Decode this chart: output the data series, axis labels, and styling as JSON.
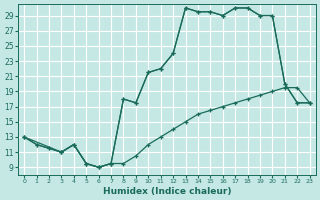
{
  "xlabel": "Humidex (Indice chaleur)",
  "bg_color": "#c5e8e5",
  "grid_color": "#d0e8e0",
  "line_color": "#1a6b5a",
  "xlim": [
    -0.5,
    23.5
  ],
  "ylim": [
    8.0,
    30.5
  ],
  "xticks": [
    0,
    1,
    2,
    3,
    4,
    5,
    6,
    7,
    8,
    9,
    10,
    11,
    12,
    13,
    14,
    15,
    16,
    17,
    18,
    19,
    20,
    21,
    22,
    23
  ],
  "yticks": [
    9,
    11,
    13,
    15,
    17,
    19,
    21,
    23,
    25,
    27,
    29
  ],
  "curve1_x": [
    0,
    1,
    2,
    3,
    4,
    5,
    6,
    7,
    8,
    9,
    10,
    11,
    12,
    13,
    14,
    15,
    16,
    17,
    18,
    19,
    20,
    21,
    22,
    23
  ],
  "curve1_y": [
    13,
    12,
    11.5,
    11,
    12,
    9.5,
    9,
    9.5,
    18,
    17.5,
    21.5,
    22,
    24,
    30,
    29.5,
    29.5,
    29,
    30,
    30,
    29,
    29,
    20,
    17.5,
    17.5
  ],
  "curve2_x": [
    0,
    1,
    2,
    3,
    4,
    5,
    6,
    7,
    8,
    9,
    10,
    11,
    12,
    13,
    14,
    15,
    16,
    17,
    18,
    19,
    20,
    21,
    22,
    23
  ],
  "curve2_y": [
    13,
    12,
    11.5,
    11,
    12,
    9.5,
    9,
    9.5,
    9.5,
    10.5,
    12,
    13,
    14,
    15,
    16,
    16.5,
    17,
    17.5,
    18,
    18.5,
    19,
    19.5,
    19.5,
    17.5
  ],
  "curve3_x": [
    0,
    3,
    4,
    5,
    6,
    7,
    8,
    9,
    10,
    11,
    12,
    13,
    14,
    15,
    16,
    17,
    18,
    19,
    20,
    21,
    22,
    23
  ],
  "curve3_y": [
    13,
    11,
    12,
    9.5,
    9,
    9.5,
    18,
    17.5,
    21.5,
    22,
    24,
    30,
    29.5,
    29.5,
    29,
    30,
    30,
    29,
    29,
    20,
    17.5,
    17.5
  ]
}
